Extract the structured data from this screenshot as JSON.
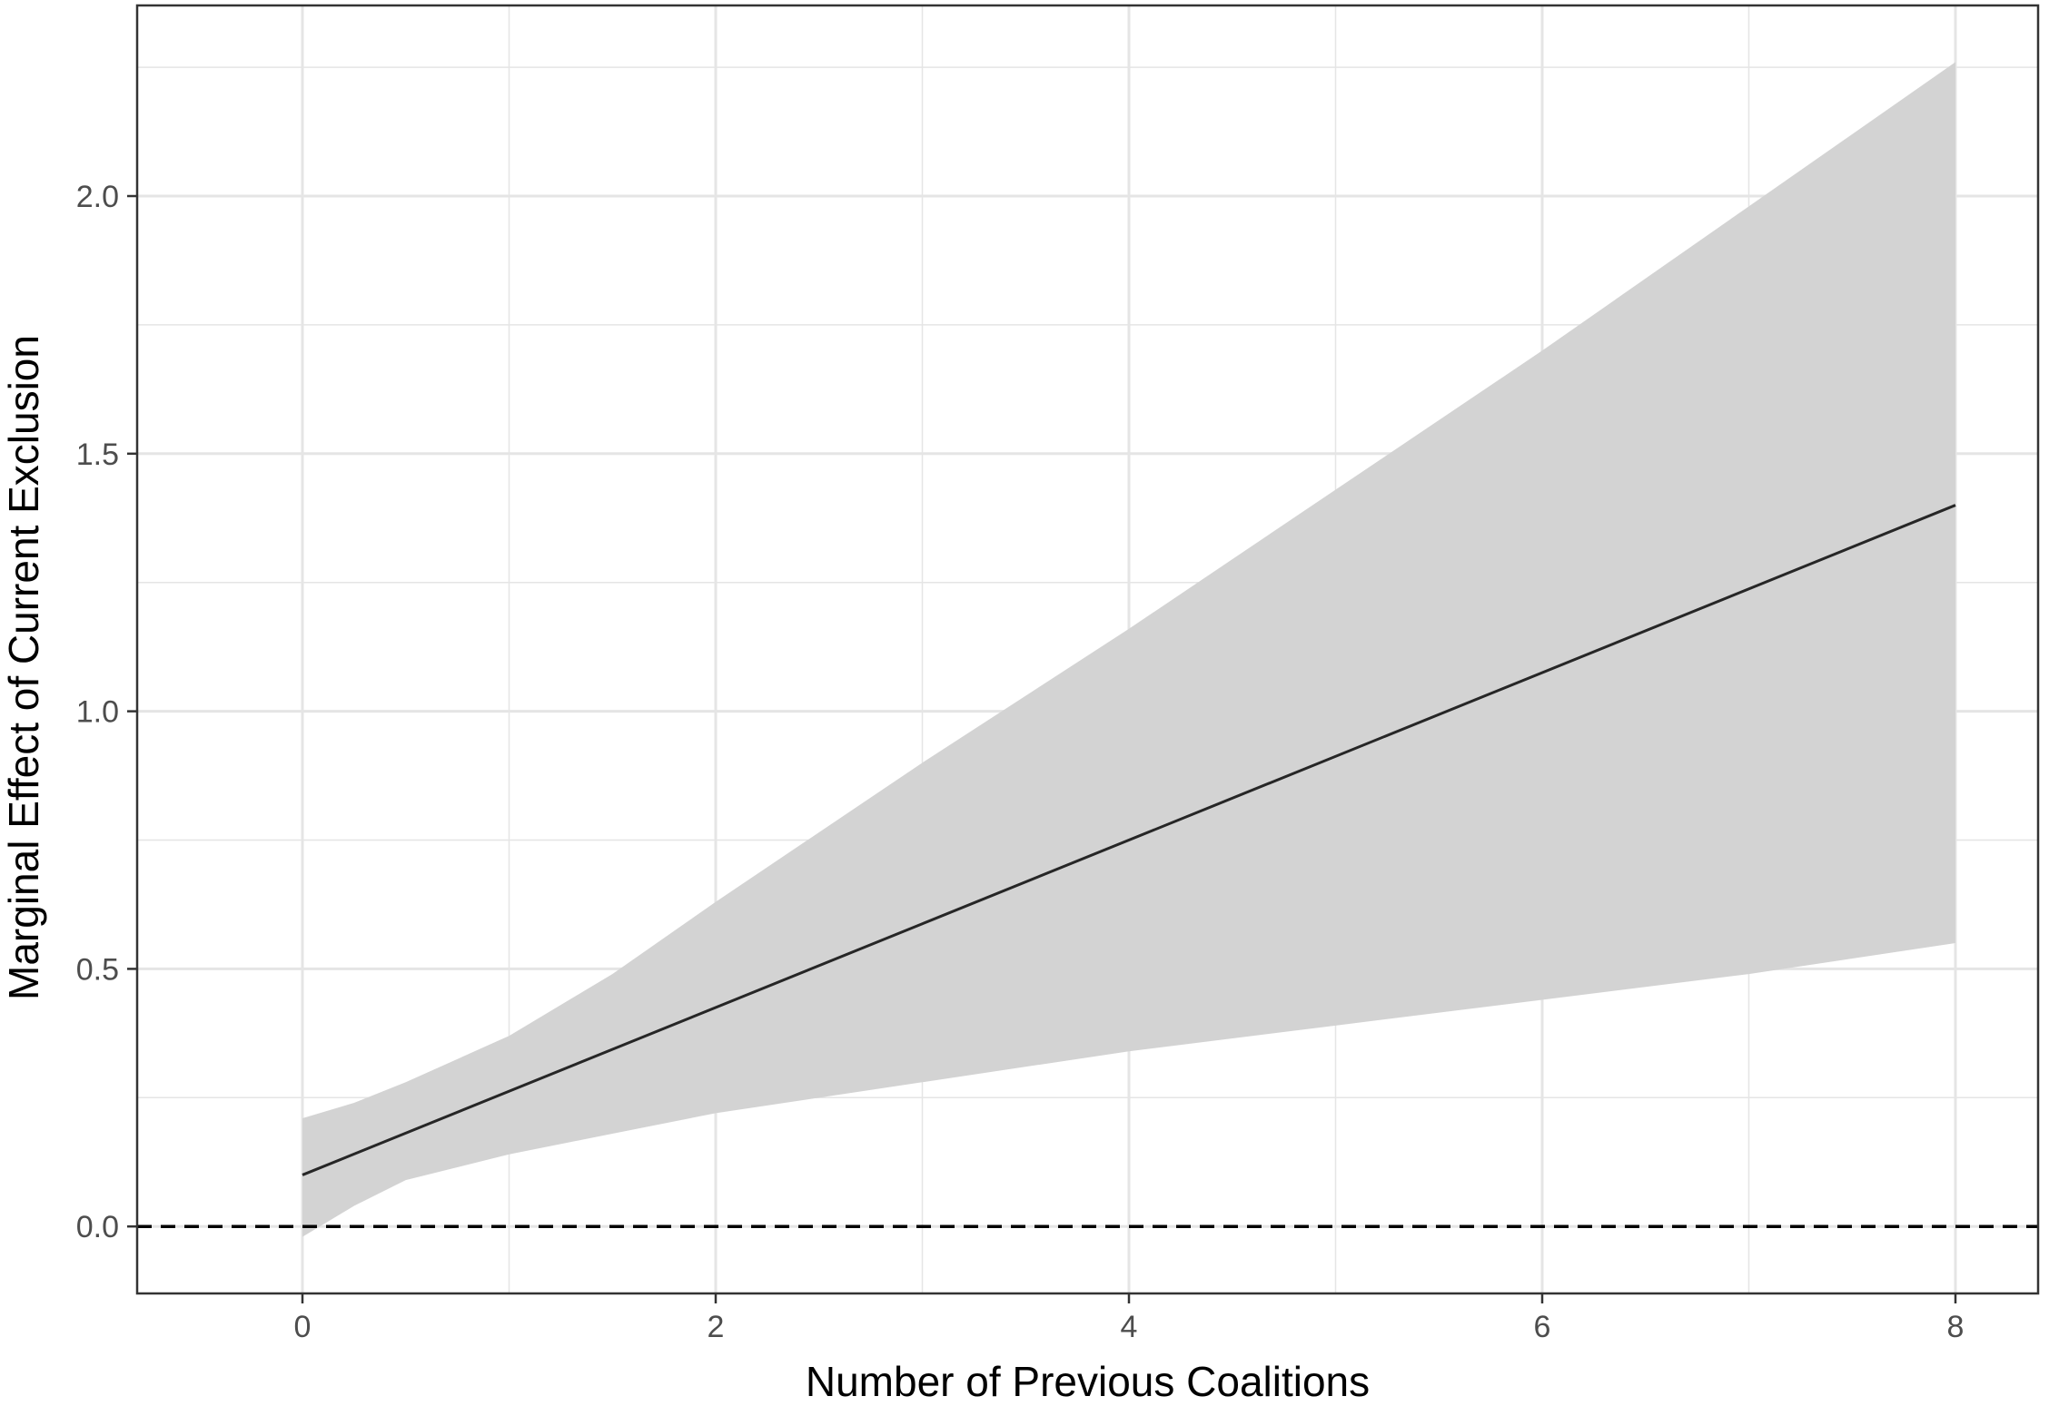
{
  "chart_data": {
    "type": "line",
    "xlabel": "Number of Previous Coalitions",
    "ylabel": "Marginal Effect of Current Exclusion",
    "xlim": [
      -0.8,
      8.4
    ],
    "ylim": [
      -0.13,
      2.37
    ],
    "x_ticks": [
      0,
      2,
      4,
      6,
      8
    ],
    "x_tick_labels": [
      "0",
      "2",
      "4",
      "6",
      "8"
    ],
    "y_ticks": [
      0.0,
      0.5,
      1.0,
      1.5,
      2.0
    ],
    "y_tick_labels": [
      "0.0",
      "0.5",
      "1.0",
      "1.5",
      "2.0"
    ],
    "grid": true,
    "series": [
      {
        "x": [
          0,
          8
        ],
        "y": [
          0.1,
          1.4
        ]
      }
    ],
    "band": {
      "x": [
        0,
        0.25,
        0.5,
        1,
        1.5,
        2,
        3,
        4,
        5,
        6,
        7,
        8
      ],
      "lower": [
        -0.02,
        0.04,
        0.09,
        0.14,
        0.18,
        0.22,
        0.28,
        0.34,
        0.39,
        0.44,
        0.49,
        0.55
      ],
      "upper": [
        0.21,
        0.24,
        0.28,
        0.37,
        0.49,
        0.63,
        0.9,
        1.16,
        1.43,
        1.7,
        1.98,
        2.26
      ]
    },
    "reference_line": {
      "y": 0.0,
      "style": "dashed"
    },
    "colors": {
      "line": "#262626",
      "band": "#d3d3d3",
      "grid": "#e5e5e5",
      "reference": "#000000",
      "panel_border": "#333333"
    }
  }
}
